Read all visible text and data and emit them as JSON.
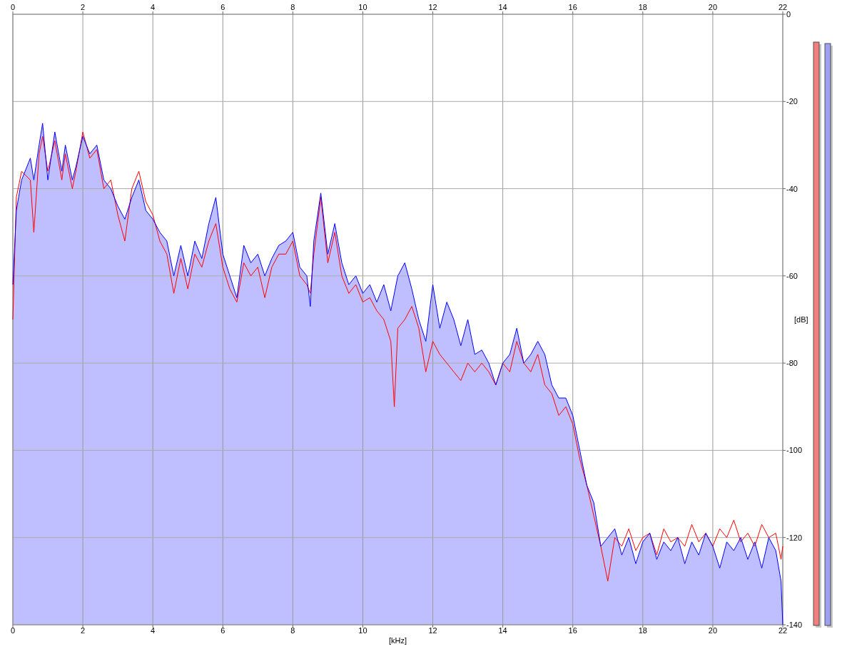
{
  "chart_data": {
    "type": "line",
    "xlabel": "[kHz]",
    "ylabel": "[dB]",
    "xlim": [
      0,
      22
    ],
    "xticks": [
      0,
      2,
      4,
      6,
      8,
      10,
      12,
      14,
      16,
      18,
      20,
      22
    ],
    "x2lim": [
      0,
      22
    ],
    "x2ticks": [
      0,
      2,
      4,
      6,
      8,
      10,
      12,
      14,
      16,
      18,
      20,
      22
    ],
    "ylim": [
      -140,
      0
    ],
    "yticks": [
      0,
      -20,
      -40,
      -60,
      -80,
      -100,
      -120,
      -140
    ],
    "grid": true,
    "series": [
      {
        "color": "#ff0000",
        "x": [
          0,
          0.1,
          0.25,
          0.5,
          0.6,
          0.75,
          0.85,
          1,
          1.2,
          1.4,
          1.5,
          1.7,
          1.8,
          2,
          2.2,
          2.4,
          2.6,
          2.8,
          3,
          3.2,
          3.4,
          3.6,
          3.8,
          4,
          4.2,
          4.4,
          4.6,
          4.8,
          5,
          5.2,
          5.4,
          5.6,
          5.8,
          6,
          6.2,
          6.4,
          6.6,
          6.8,
          7,
          7.2,
          7.4,
          7.6,
          7.8,
          8,
          8.2,
          8.4,
          8.5,
          8.6,
          8.8,
          9,
          9.2,
          9.4,
          9.6,
          9.8,
          10,
          10.2,
          10.4,
          10.6,
          10.8,
          10.9,
          11,
          11.2,
          11.4,
          11.6,
          11.8,
          12,
          12.2,
          12.4,
          12.6,
          12.8,
          13,
          13.2,
          13.4,
          13.6,
          13.8,
          14,
          14.2,
          14.4,
          14.6,
          14.8,
          15,
          15.2,
          15.4,
          15.6,
          15.8,
          16,
          16.2,
          16.4,
          16.6,
          16.8,
          17,
          17.2,
          17.4,
          17.6,
          17.8,
          18,
          18.2,
          18.4,
          18.6,
          18.8,
          19,
          19.2,
          19.4,
          19.6,
          19.8,
          20,
          20.2,
          20.4,
          20.6,
          20.8,
          21,
          21.2,
          21.4,
          21.6,
          21.8,
          21.95,
          22
        ],
        "values": [
          -70,
          -42,
          -36,
          -38,
          -50,
          -32,
          -28,
          -36,
          -29,
          -38,
          -32,
          -40,
          -36,
          -27,
          -33,
          -31,
          -40,
          -38,
          -46,
          -52,
          -40,
          -36,
          -43,
          -46,
          -52,
          -55,
          -64,
          -56,
          -63,
          -55,
          -58,
          -52,
          -48,
          -58,
          -63,
          -66,
          -57,
          -60,
          -58,
          -65,
          -58,
          -55,
          -55,
          -52,
          -60,
          -62,
          -64,
          -55,
          -42,
          -57,
          -50,
          -60,
          -64,
          -62,
          -66,
          -65,
          -68,
          -70,
          -75,
          -90,
          -72,
          -70,
          -67,
          -72,
          -82,
          -75,
          -78,
          -80,
          -82,
          -84,
          -80,
          -82,
          -80,
          -82,
          -85,
          -80,
          -82,
          -75,
          -80,
          -82,
          -78,
          -85,
          -87,
          -92,
          -90,
          -94,
          -102,
          -108,
          -115,
          -122,
          -130,
          -120,
          -122,
          -118,
          -123,
          -120,
          -119,
          -124,
          -118,
          -121,
          -120,
          -122,
          -117,
          -121,
          -119,
          -122,
          -118,
          -120,
          -116,
          -121,
          -119,
          -122,
          -117,
          -120,
          -119,
          -125,
          -122
        ]
      },
      {
        "color": "#0000ff",
        "x": [
          0,
          0.1,
          0.25,
          0.5,
          0.6,
          0.75,
          0.85,
          1,
          1.2,
          1.4,
          1.5,
          1.7,
          1.8,
          2,
          2.2,
          2.4,
          2.6,
          2.8,
          3,
          3.2,
          3.4,
          3.6,
          3.8,
          4,
          4.2,
          4.4,
          4.6,
          4.8,
          5,
          5.2,
          5.4,
          5.6,
          5.8,
          6,
          6.2,
          6.4,
          6.6,
          6.8,
          7,
          7.2,
          7.4,
          7.6,
          7.8,
          8,
          8.2,
          8.4,
          8.5,
          8.6,
          8.8,
          9,
          9.2,
          9.4,
          9.6,
          9.8,
          10,
          10.2,
          10.4,
          10.6,
          10.8,
          11,
          11.2,
          11.4,
          11.6,
          11.8,
          12,
          12.2,
          12.4,
          12.6,
          12.8,
          13,
          13.2,
          13.4,
          13.6,
          13.8,
          14,
          14.2,
          14.4,
          14.6,
          14.8,
          15,
          15.2,
          15.4,
          15.6,
          15.8,
          16,
          16.2,
          16.4,
          16.6,
          16.8,
          17,
          17.2,
          17.4,
          17.6,
          17.8,
          18,
          18.2,
          18.4,
          18.6,
          18.8,
          19,
          19.2,
          19.4,
          19.6,
          19.8,
          20,
          20.2,
          20.4,
          20.6,
          20.8,
          21,
          21.2,
          21.4,
          21.6,
          21.8,
          21.95,
          22
        ],
        "values": [
          -62,
          -45,
          -38,
          -33,
          -38,
          -30,
          -25,
          -38,
          -27,
          -36,
          -30,
          -38,
          -35,
          -28,
          -32,
          -30,
          -38,
          -40,
          -44,
          -47,
          -42,
          -38,
          -45,
          -47,
          -50,
          -52,
          -60,
          -53,
          -60,
          -52,
          -56,
          -48,
          -42,
          -55,
          -60,
          -65,
          -53,
          -57,
          -55,
          -60,
          -56,
          -53,
          -52,
          -50,
          -58,
          -60,
          -67,
          -52,
          -41,
          -55,
          -48,
          -57,
          -62,
          -60,
          -64,
          -62,
          -66,
          -62,
          -68,
          -60,
          -57,
          -63,
          -70,
          -75,
          -62,
          -72,
          -66,
          -70,
          -76,
          -70,
          -78,
          -77,
          -80,
          -85,
          -80,
          -78,
          -72,
          -80,
          -78,
          -75,
          -78,
          -85,
          -88,
          -88,
          -92,
          -100,
          -108,
          -112,
          -122,
          -120,
          -118,
          -124,
          -120,
          -126,
          -121,
          -119,
          -125,
          -121,
          -123,
          -120,
          -126,
          -121,
          -124,
          -119,
          -122,
          -127,
          -121,
          -123,
          -120,
          -125,
          -121,
          -127,
          -120,
          -123,
          -130,
          -140
        ]
      }
    ]
  }
}
